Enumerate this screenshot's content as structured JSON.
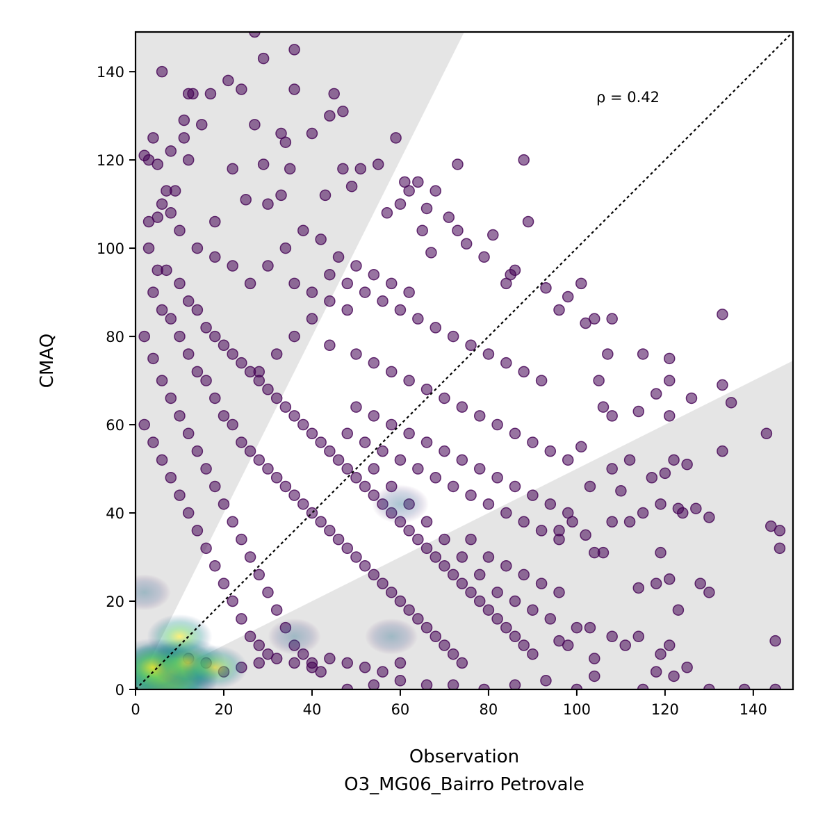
{
  "chart_data": {
    "type": "scatter",
    "title": "",
    "xlabel": "Observation",
    "xlabel_sub": "O3_MG06_Bairro Petrovale",
    "ylabel": "CMAQ",
    "xlim": [
      0,
      149
    ],
    "ylim": [
      0,
      149
    ],
    "xticks": [
      0,
      20,
      40,
      60,
      80,
      100,
      120,
      140
    ],
    "yticks": [
      0,
      20,
      40,
      60,
      80,
      100,
      120,
      140
    ],
    "grid": false,
    "annotation": "ρ = 0.42",
    "reference_line": {
      "type": "1:1",
      "style": "dotted",
      "color": "#000000"
    },
    "shaded_regions": [
      {
        "name": "over-prediction wedge",
        "slope": 2.0,
        "color": "#e5e5e5"
      },
      {
        "name": "under-prediction wedge",
        "slope": 0.5,
        "color": "#e5e5e5"
      }
    ],
    "colormap": "viridis",
    "marker_color": "#440154",
    "points": [
      [
        27,
        149
      ],
      [
        36,
        145
      ],
      [
        29,
        143
      ],
      [
        6,
        140
      ],
      [
        21,
        138
      ],
      [
        24,
        136
      ],
      [
        36,
        136
      ],
      [
        17,
        135
      ],
      [
        12,
        135
      ],
      [
        13,
        135
      ],
      [
        45,
        135
      ],
      [
        47,
        131
      ],
      [
        44,
        130
      ],
      [
        11,
        129
      ],
      [
        27,
        128
      ],
      [
        15,
        128
      ],
      [
        40,
        126
      ],
      [
        59,
        125
      ],
      [
        33,
        126
      ],
      [
        4,
        125
      ],
      [
        34,
        124
      ],
      [
        11,
        125
      ],
      [
        2,
        121
      ],
      [
        8,
        122
      ],
      [
        3,
        120
      ],
      [
        12,
        120
      ],
      [
        5,
        119
      ],
      [
        22,
        118
      ],
      [
        29,
        119
      ],
      [
        35,
        118
      ],
      [
        47,
        118
      ],
      [
        51,
        118
      ],
      [
        55,
        119
      ],
      [
        88,
        120
      ],
      [
        73,
        119
      ],
      [
        64,
        115
      ],
      [
        61,
        115
      ],
      [
        68,
        113
      ],
      [
        62,
        113
      ],
      [
        43,
        112
      ],
      [
        9,
        113
      ],
      [
        7,
        113
      ],
      [
        5,
        107
      ],
      [
        3,
        106
      ],
      [
        18,
        106
      ],
      [
        25,
        111
      ],
      [
        30,
        110
      ],
      [
        33,
        112
      ],
      [
        49,
        114
      ],
      [
        57,
        108
      ],
      [
        60,
        110
      ],
      [
        66,
        109
      ],
      [
        71,
        107
      ],
      [
        73,
        104
      ],
      [
        65,
        104
      ],
      [
        81,
        103
      ],
      [
        89,
        106
      ],
      [
        79,
        98
      ],
      [
        75,
        101
      ],
      [
        67,
        99
      ],
      [
        86,
        95
      ],
      [
        85,
        94
      ],
      [
        84,
        92
      ],
      [
        101,
        92
      ],
      [
        98,
        89
      ],
      [
        93,
        91
      ],
      [
        96,
        86
      ],
      [
        102,
        83
      ],
      [
        104,
        84
      ],
      [
        108,
        84
      ],
      [
        107,
        76
      ],
      [
        105,
        70
      ],
      [
        115,
        76
      ],
      [
        121,
        75
      ],
      [
        118,
        67
      ],
      [
        121,
        70
      ],
      [
        126,
        66
      ],
      [
        133,
        69
      ],
      [
        135,
        65
      ],
      [
        133,
        85
      ],
      [
        106,
        64
      ],
      [
        108,
        62
      ],
      [
        114,
        63
      ],
      [
        121,
        62
      ],
      [
        143,
        58
      ],
      [
        133,
        54
      ],
      [
        122,
        52
      ],
      [
        120,
        49
      ],
      [
        117,
        48
      ],
      [
        125,
        51
      ],
      [
        112,
        52
      ],
      [
        108,
        50
      ],
      [
        101,
        55
      ],
      [
        103,
        46
      ],
      [
        110,
        45
      ],
      [
        119,
        42
      ],
      [
        123,
        41
      ],
      [
        127,
        41
      ],
      [
        130,
        39
      ],
      [
        124,
        40
      ],
      [
        115,
        40
      ],
      [
        112,
        38
      ],
      [
        108,
        38
      ],
      [
        99,
        38
      ],
      [
        96,
        36
      ],
      [
        102,
        35
      ],
      [
        104,
        31
      ],
      [
        106,
        31
      ],
      [
        119,
        31
      ],
      [
        144,
        37
      ],
      [
        146,
        36
      ],
      [
        146,
        32
      ],
      [
        114,
        23
      ],
      [
        118,
        24
      ],
      [
        121,
        25
      ],
      [
        123,
        18
      ],
      [
        128,
        24
      ],
      [
        130,
        22
      ],
      [
        121,
        10
      ],
      [
        125,
        5
      ],
      [
        119,
        8
      ],
      [
        114,
        12
      ],
      [
        108,
        12
      ],
      [
        111,
        10
      ],
      [
        118,
        4
      ],
      [
        122,
        3
      ],
      [
        100,
        14
      ],
      [
        96,
        11
      ],
      [
        98,
        10
      ],
      [
        103,
        14
      ],
      [
        104,
        7
      ],
      [
        104,
        3
      ],
      [
        145,
        11
      ],
      [
        145,
        0
      ],
      [
        138,
        0
      ],
      [
        130,
        0
      ],
      [
        115,
        0
      ],
      [
        100,
        0
      ],
      [
        93,
        2
      ],
      [
        86,
        1
      ],
      [
        79,
        0
      ],
      [
        72,
        1
      ],
      [
        66,
        1
      ],
      [
        60,
        2
      ],
      [
        54,
        1
      ],
      [
        48,
        0
      ],
      [
        3,
        100
      ],
      [
        5,
        95
      ],
      [
        7,
        95
      ],
      [
        10,
        92
      ],
      [
        12,
        88
      ],
      [
        14,
        86
      ],
      [
        16,
        82
      ],
      [
        18,
        80
      ],
      [
        20,
        78
      ],
      [
        22,
        76
      ],
      [
        24,
        74
      ],
      [
        26,
        72
      ],
      [
        28,
        70
      ],
      [
        30,
        68
      ],
      [
        32,
        66
      ],
      [
        34,
        64
      ],
      [
        36,
        62
      ],
      [
        38,
        60
      ],
      [
        40,
        58
      ],
      [
        42,
        56
      ],
      [
        44,
        54
      ],
      [
        46,
        52
      ],
      [
        48,
        50
      ],
      [
        50,
        48
      ],
      [
        52,
        46
      ],
      [
        54,
        44
      ],
      [
        56,
        42
      ],
      [
        58,
        40
      ],
      [
        60,
        38
      ],
      [
        62,
        36
      ],
      [
        64,
        34
      ],
      [
        66,
        32
      ],
      [
        68,
        30
      ],
      [
        70,
        28
      ],
      [
        72,
        26
      ],
      [
        74,
        24
      ],
      [
        76,
        22
      ],
      [
        78,
        20
      ],
      [
        80,
        18
      ],
      [
        82,
        16
      ],
      [
        84,
        14
      ],
      [
        86,
        12
      ],
      [
        88,
        10
      ],
      [
        90,
        8
      ],
      [
        4,
        90
      ],
      [
        6,
        86
      ],
      [
        8,
        84
      ],
      [
        10,
        80
      ],
      [
        12,
        76
      ],
      [
        14,
        72
      ],
      [
        16,
        70
      ],
      [
        18,
        66
      ],
      [
        20,
        62
      ],
      [
        22,
        60
      ],
      [
        24,
        56
      ],
      [
        26,
        54
      ],
      [
        28,
        52
      ],
      [
        30,
        50
      ],
      [
        32,
        48
      ],
      [
        34,
        46
      ],
      [
        36,
        44
      ],
      [
        38,
        42
      ],
      [
        40,
        40
      ],
      [
        42,
        38
      ],
      [
        44,
        36
      ],
      [
        46,
        34
      ],
      [
        48,
        32
      ],
      [
        50,
        30
      ],
      [
        52,
        28
      ],
      [
        54,
        26
      ],
      [
        56,
        24
      ],
      [
        58,
        22
      ],
      [
        60,
        20
      ],
      [
        62,
        18
      ],
      [
        64,
        16
      ],
      [
        66,
        14
      ],
      [
        68,
        12
      ],
      [
        70,
        10
      ],
      [
        72,
        8
      ],
      [
        74,
        6
      ],
      [
        2,
        80
      ],
      [
        4,
        75
      ],
      [
        6,
        70
      ],
      [
        8,
        66
      ],
      [
        10,
        62
      ],
      [
        12,
        58
      ],
      [
        14,
        54
      ],
      [
        16,
        50
      ],
      [
        18,
        46
      ],
      [
        20,
        42
      ],
      [
        22,
        38
      ],
      [
        24,
        34
      ],
      [
        26,
        30
      ],
      [
        28,
        26
      ],
      [
        30,
        22
      ],
      [
        32,
        18
      ],
      [
        34,
        14
      ],
      [
        36,
        10
      ],
      [
        38,
        8
      ],
      [
        40,
        6
      ],
      [
        42,
        4
      ],
      [
        2,
        60
      ],
      [
        4,
        56
      ],
      [
        6,
        52
      ],
      [
        8,
        48
      ],
      [
        10,
        44
      ],
      [
        12,
        40
      ],
      [
        14,
        36
      ],
      [
        16,
        32
      ],
      [
        18,
        28
      ],
      [
        20,
        24
      ],
      [
        22,
        20
      ],
      [
        24,
        16
      ],
      [
        26,
        12
      ],
      [
        28,
        10
      ],
      [
        30,
        8
      ],
      [
        44,
        88
      ],
      [
        48,
        86
      ],
      [
        52,
        90
      ],
      [
        56,
        88
      ],
      [
        60,
        86
      ],
      [
        64,
        84
      ],
      [
        68,
        82
      ],
      [
        72,
        80
      ],
      [
        76,
        78
      ],
      [
        80,
        76
      ],
      [
        84,
        74
      ],
      [
        88,
        72
      ],
      [
        92,
        70
      ],
      [
        40,
        84
      ],
      [
        36,
        80
      ],
      [
        32,
        76
      ],
      [
        28,
        72
      ],
      [
        44,
        78
      ],
      [
        50,
        76
      ],
      [
        54,
        74
      ],
      [
        58,
        72
      ],
      [
        62,
        70
      ],
      [
        66,
        68
      ],
      [
        70,
        66
      ],
      [
        74,
        64
      ],
      [
        78,
        62
      ],
      [
        82,
        60
      ],
      [
        86,
        58
      ],
      [
        90,
        56
      ],
      [
        94,
        54
      ],
      [
        98,
        52
      ],
      [
        50,
        64
      ],
      [
        54,
        62
      ],
      [
        58,
        60
      ],
      [
        62,
        58
      ],
      [
        66,
        56
      ],
      [
        70,
        54
      ],
      [
        74,
        52
      ],
      [
        78,
        50
      ],
      [
        82,
        48
      ],
      [
        86,
        46
      ],
      [
        90,
        44
      ],
      [
        94,
        42
      ],
      [
        98,
        40
      ],
      [
        48,
        58
      ],
      [
        52,
        56
      ],
      [
        56,
        54
      ],
      [
        60,
        52
      ],
      [
        64,
        50
      ],
      [
        68,
        48
      ],
      [
        72,
        46
      ],
      [
        76,
        44
      ],
      [
        80,
        42
      ],
      [
        84,
        40
      ],
      [
        88,
        38
      ],
      [
        92,
        36
      ],
      [
        96,
        34
      ],
      [
        30,
        96
      ],
      [
        34,
        100
      ],
      [
        38,
        104
      ],
      [
        42,
        102
      ],
      [
        46,
        98
      ],
      [
        50,
        96
      ],
      [
        54,
        94
      ],
      [
        58,
        92
      ],
      [
        62,
        90
      ],
      [
        26,
        92
      ],
      [
        22,
        96
      ],
      [
        18,
        98
      ],
      [
        14,
        100
      ],
      [
        10,
        104
      ],
      [
        8,
        108
      ],
      [
        6,
        110
      ],
      [
        36,
        92
      ],
      [
        40,
        90
      ],
      [
        44,
        94
      ],
      [
        48,
        92
      ],
      [
        76,
        34
      ],
      [
        80,
        30
      ],
      [
        84,
        28
      ],
      [
        88,
        26
      ],
      [
        92,
        24
      ],
      [
        96,
        22
      ],
      [
        78,
        26
      ],
      [
        82,
        22
      ],
      [
        86,
        20
      ],
      [
        90,
        18
      ],
      [
        94,
        16
      ],
      [
        74,
        30
      ],
      [
        70,
        34
      ],
      [
        66,
        38
      ],
      [
        62,
        42
      ],
      [
        58,
        46
      ],
      [
        54,
        50
      ],
      [
        20,
        4
      ],
      [
        24,
        5
      ],
      [
        28,
        6
      ],
      [
        32,
        7
      ],
      [
        36,
        6
      ],
      [
        40,
        5
      ],
      [
        44,
        7
      ],
      [
        48,
        6
      ],
      [
        52,
        5
      ],
      [
        56,
        4
      ],
      [
        60,
        6
      ],
      [
        16,
        6
      ],
      [
        12,
        7
      ]
    ],
    "density_core": [
      {
        "x": 6,
        "y": 2,
        "level": 1.0
      },
      {
        "x": 8,
        "y": 4,
        "level": 0.85
      },
      {
        "x": 4,
        "y": 5,
        "level": 0.7
      },
      {
        "x": 12,
        "y": 6,
        "level": 0.55
      },
      {
        "x": 18,
        "y": 5,
        "level": 0.45
      },
      {
        "x": 10,
        "y": 12,
        "level": 0.45
      },
      {
        "x": 60,
        "y": 42,
        "level": 0.35
      },
      {
        "x": 58,
        "y": 12,
        "level": 0.3
      },
      {
        "x": 36,
        "y": 12,
        "level": 0.3
      },
      {
        "x": 2,
        "y": 22,
        "level": 0.3
      }
    ]
  }
}
